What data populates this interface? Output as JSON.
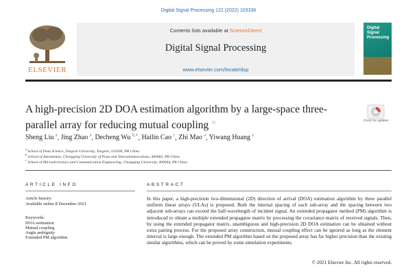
{
  "header": {
    "journal_ref": "Digital Signal Processing 122 (2022) 103336",
    "contents_prefix": "Contents lists available at ",
    "contents_link": "ScienceDirect",
    "journal_title": "Digital Signal Processing",
    "journal_url": "www.elsevier.com/locate/dsp",
    "publisher": "ELSEVIER",
    "cover_text": "Digital\nSignal\nProcessing"
  },
  "article": {
    "title": "A high-precision 2D DOA estimation algorithm by a large-space three-parallel array for reducing mutual coupling",
    "title_mark": "☆",
    "badge_label": "Check for updates",
    "authors": [
      {
        "name": "Sheng Liu",
        "sup": "a"
      },
      {
        "name": "Jing Zhao",
        "sup": "a"
      },
      {
        "name": "Decheng Wu",
        "sup": "b,∗"
      },
      {
        "name": "Hailin Cao",
        "sup": "c"
      },
      {
        "name": "Zhi Mao",
        "sup": "a"
      },
      {
        "name": "Yiwang Huang",
        "sup": "a"
      }
    ],
    "affiliations": [
      {
        "sup": "a",
        "text": "School of Data Science, Tongren University, Tongren, 554300, PR China"
      },
      {
        "sup": "b",
        "text": "School of Automation, Chongqing University of Posts and Telecommunications, 400065, PR China"
      },
      {
        "sup": "c",
        "text": "School of Microelectronics and Communication Engineering, Chongqing University, 400044, PR China"
      }
    ]
  },
  "info": {
    "heading": "ARTICLE INFO",
    "history_label": "Article history:",
    "history_value": "Available online 8 December 2021",
    "keywords_label": "Keywords:",
    "keywords": [
      "DOA estimation",
      "Mutual coupling",
      "Angle ambiguity",
      "Extended PM algorithm"
    ]
  },
  "abstract": {
    "heading": "ABSTRACT",
    "text": "In this paper, a high-precision two-dimensional (2D) direction of arrival (DOA) estimation algorithm by three parallel uniform linear arrays (ULAs) is proposed. Both the internal spacing of each sub-array and the spacing between two adjacent sub-arrays can exceed the half-wavelength of incident signal. An extended propagator method (PM) algorithm is introduced to obtain a multiple extended propagator matrix by processing the covariance matrix of received signals. Then, by using the extended propagator matrix, unambiguous and high-precision 2D DOA estimation can be obtained without extra pairing process. For the proposed array construction, mutual coupling effect can be ignored as long as the element interval is large enough. The extended PM algorithm based on the proposed array has far higher precision than the existing similar algorithms, which can be proved by some simulation experiments.",
    "copyright": "© 2021 Elsevier Inc. All rights reserved."
  },
  "colors": {
    "link_blue": "#2b6ca3",
    "elsevier_orange": "#e9711c",
    "cover_teal": "#1f9a8a"
  }
}
